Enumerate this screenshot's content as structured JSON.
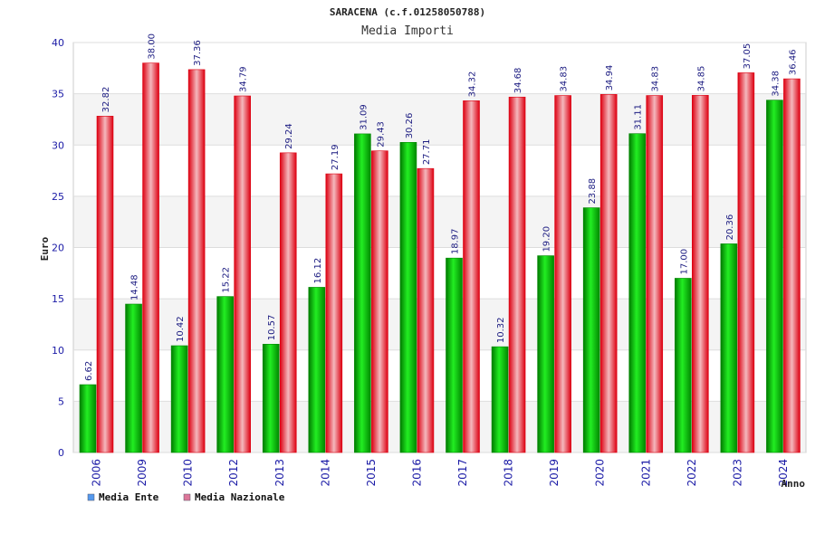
{
  "chart_data": {
    "type": "bar",
    "title": "SARACENA (c.f.01258050788)",
    "subtitle": "Media Importi",
    "ylabel": "Euro",
    "xlabel": "Anno",
    "ylim": [
      0,
      40
    ],
    "yticks": [
      0,
      5,
      10,
      15,
      20,
      25,
      30,
      35,
      40
    ],
    "grid": true,
    "legend_position": "bottom-left",
    "categories": [
      "2006",
      "2009",
      "2010",
      "2012",
      "2013",
      "2014",
      "2015",
      "2016",
      "2017",
      "2018",
      "2019",
      "2020",
      "2021",
      "2022",
      "2023",
      "2024"
    ],
    "series": [
      {
        "name": "Media Ente",
        "color": "#00bb00",
        "legend_color": "#5599ee",
        "values": [
          6.62,
          14.48,
          10.42,
          15.22,
          10.57,
          16.12,
          31.09,
          30.26,
          18.97,
          10.32,
          19.2,
          23.88,
          31.11,
          17.0,
          20.36,
          34.38
        ],
        "labels": [
          "6.62",
          "14.48",
          "10.42",
          "15.22",
          "10.57",
          "16.12",
          "31.09",
          "30.26",
          "18.97",
          "10.32",
          "19.20",
          "23.88",
          "31.11",
          "17.00",
          "20.36",
          "34.38"
        ]
      },
      {
        "name": "Media Nazionale",
        "color": "#ee1122",
        "legend_color": "#dd7799",
        "values": [
          32.82,
          38.0,
          37.36,
          34.79,
          29.24,
          27.19,
          29.43,
          27.71,
          34.32,
          34.68,
          34.83,
          34.94,
          34.83,
          34.85,
          37.05,
          36.46
        ],
        "labels": [
          "32.82",
          "38.00",
          "37.36",
          "34.79",
          "29.24",
          "27.19",
          "29.43",
          "27.71",
          "34.32",
          "34.68",
          "34.83",
          "34.94",
          "34.83",
          "34.85",
          "37.05",
          "36.46"
        ]
      }
    ]
  }
}
